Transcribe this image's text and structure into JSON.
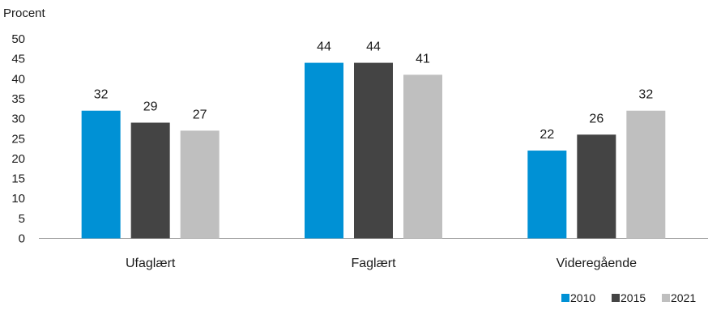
{
  "chart_data": {
    "type": "bar",
    "title": "",
    "xlabel": "",
    "ylabel": "Procent",
    "categories": [
      "Ufaglært",
      "Faglært",
      "Videregående"
    ],
    "series": [
      {
        "name": "2010",
        "color": "#0091d5",
        "values": [
          32,
          44,
          22
        ],
        "labels": [
          "32",
          "44",
          "22"
        ]
      },
      {
        "name": "2015",
        "color": "#444444",
        "values": [
          29,
          44,
          26
        ],
        "labels": [
          "29",
          "44",
          "26"
        ]
      },
      {
        "name": "2021",
        "color": "#bfbfbf",
        "values": [
          27,
          41,
          32
        ],
        "labels": [
          "27",
          "41",
          "32"
        ]
      }
    ],
    "ylim": [
      0,
      50
    ],
    "yticks": [
      "0",
      "5",
      "10",
      "15",
      "20",
      "25",
      "30",
      "35",
      "40",
      "45",
      "50"
    ],
    "grid": false,
    "legend": "bottom-right"
  }
}
